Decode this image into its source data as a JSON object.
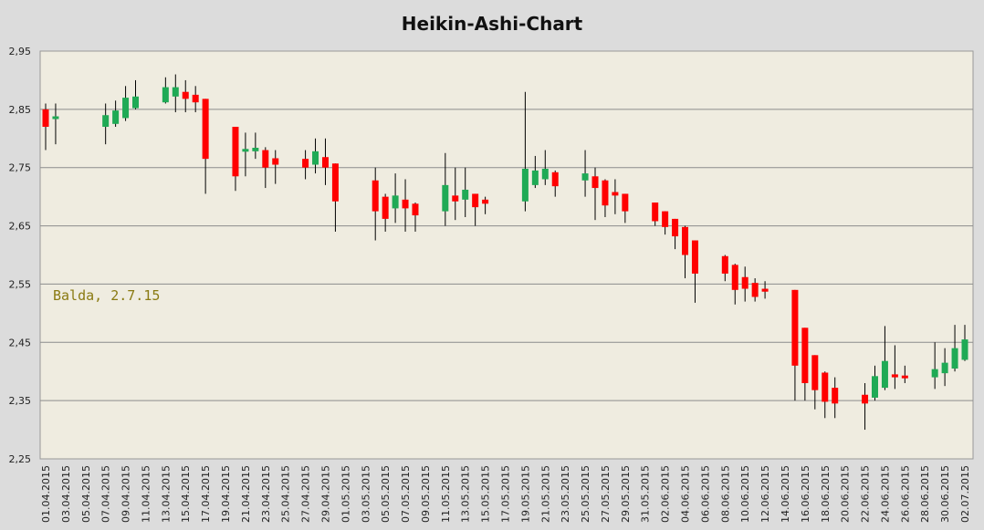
{
  "chart_data": {
    "type": "candlestick",
    "title": "Heikin-Ashi-Chart",
    "annotation": "Balda, 2.7.15",
    "ylim": [
      2.25,
      2.95
    ],
    "yticks": [
      "2,25",
      "2,35",
      "2,45",
      "2,55",
      "2,65",
      "2,75",
      "2,85",
      "2,95"
    ],
    "grid": "horizontal",
    "colors": {
      "up": "#1faa55",
      "down": "#ff0000",
      "wick": "#000000",
      "plot_bg": "#efece0",
      "outer_bg": "#dcdcdc",
      "gridline": "#8c8c8c"
    },
    "xticks": [
      "01.04.2015",
      "03.04.2015",
      "05.04.2015",
      "07.04.2015",
      "09.04.2015",
      "11.04.2015",
      "13.04.2015",
      "15.04.2015",
      "17.04.2015",
      "19.04.2015",
      "21.04.2015",
      "23.04.2015",
      "25.04.2015",
      "27.04.2015",
      "29.04.2015",
      "01.05.2015",
      "03.05.2015",
      "05.05.2015",
      "07.05.2015",
      "09.05.2015",
      "11.05.2015",
      "13.05.2015",
      "15.05.2015",
      "17.05.2015",
      "19.05.2015",
      "21.05.2015",
      "23.05.2015",
      "25.05.2015",
      "27.05.2015",
      "29.05.2015",
      "31.05.2015",
      "02.06.2015",
      "04.06.2015",
      "06.06.2015",
      "08.06.2015",
      "10.06.2015",
      "12.06.2015",
      "14.06.2015",
      "16.06.2015",
      "18.06.2015",
      "20.06.2015",
      "22.06.2015",
      "24.06.2015",
      "26.06.2015",
      "28.06.2015",
      "30.06.2015",
      "02.07.2015"
    ],
    "candles": [
      {
        "date": "01.04.2015",
        "open": 2.85,
        "close": 2.82,
        "high": 2.86,
        "low": 2.78
      },
      {
        "date": "02.04.2015",
        "open": 2.835,
        "close": 2.838,
        "high": 2.86,
        "low": 2.79
      },
      {
        "date": "07.04.2015",
        "open": 2.82,
        "close": 2.84,
        "high": 2.86,
        "low": 2.79
      },
      {
        "date": "08.04.2015",
        "open": 2.825,
        "close": 2.848,
        "high": 2.865,
        "low": 2.82
      },
      {
        "date": "09.04.2015",
        "open": 2.835,
        "close": 2.87,
        "high": 2.89,
        "low": 2.83
      },
      {
        "date": "10.04.2015",
        "open": 2.852,
        "close": 2.872,
        "high": 2.9,
        "low": 2.85
      },
      {
        "date": "13.04.2015",
        "open": 2.862,
        "close": 2.888,
        "high": 2.905,
        "low": 2.86
      },
      {
        "date": "14.04.2015",
        "open": 2.872,
        "close": 2.888,
        "high": 2.91,
        "low": 2.845
      },
      {
        "date": "15.04.2015",
        "open": 2.88,
        "close": 2.868,
        "high": 2.9,
        "low": 2.845
      },
      {
        "date": "16.04.2015",
        "open": 2.875,
        "close": 2.862,
        "high": 2.89,
        "low": 2.845
      },
      {
        "date": "17.04.2015",
        "open": 2.868,
        "close": 2.765,
        "high": 2.868,
        "low": 2.705
      },
      {
        "date": "20.04.2015",
        "open": 2.82,
        "close": 2.735,
        "high": 2.82,
        "low": 2.71
      },
      {
        "date": "21.04.2015",
        "open": 2.778,
        "close": 2.782,
        "high": 2.81,
        "low": 2.735
      },
      {
        "date": "22.04.2015",
        "open": 2.778,
        "close": 2.784,
        "high": 2.81,
        "low": 2.765
      },
      {
        "date": "23.04.2015",
        "open": 2.78,
        "close": 2.75,
        "high": 2.785,
        "low": 2.715
      },
      {
        "date": "24.04.2015",
        "open": 2.766,
        "close": 2.755,
        "high": 2.78,
        "low": 2.722
      },
      {
        "date": "27.04.2015",
        "open": 2.765,
        "close": 2.75,
        "high": 2.78,
        "low": 2.73
      },
      {
        "date": "28.04.2015",
        "open": 2.755,
        "close": 2.778,
        "high": 2.8,
        "low": 2.74
      },
      {
        "date": "29.04.2015",
        "open": 2.768,
        "close": 2.75,
        "high": 2.8,
        "low": 2.72
      },
      {
        "date": "30.04.2015",
        "open": 2.757,
        "close": 2.692,
        "high": 2.757,
        "low": 2.64
      },
      {
        "date": "04.05.2015",
        "open": 2.728,
        "close": 2.675,
        "high": 2.75,
        "low": 2.625
      },
      {
        "date": "05.05.2015",
        "open": 2.7,
        "close": 2.662,
        "high": 2.705,
        "low": 2.64
      },
      {
        "date": "06.05.2015",
        "open": 2.68,
        "close": 2.702,
        "high": 2.74,
        "low": 2.655
      },
      {
        "date": "07.05.2015",
        "open": 2.695,
        "close": 2.68,
        "high": 2.73,
        "low": 2.64
      },
      {
        "date": "08.05.2015",
        "open": 2.688,
        "close": 2.668,
        "high": 2.69,
        "low": 2.64
      },
      {
        "date": "11.05.2015",
        "open": 2.675,
        "close": 2.72,
        "high": 2.775,
        "low": 2.65
      },
      {
        "date": "12.05.2015",
        "open": 2.702,
        "close": 2.692,
        "high": 2.75,
        "low": 2.66
      },
      {
        "date": "13.05.2015",
        "open": 2.695,
        "close": 2.712,
        "high": 2.75,
        "low": 2.665
      },
      {
        "date": "14.05.2015",
        "open": 2.705,
        "close": 2.682,
        "high": 2.705,
        "low": 2.65
      },
      {
        "date": "15.05.2015",
        "open": 2.695,
        "close": 2.688,
        "high": 2.7,
        "low": 2.67
      },
      {
        "date": "19.05.2015",
        "open": 2.692,
        "close": 2.748,
        "high": 2.88,
        "low": 2.675
      },
      {
        "date": "20.05.2015",
        "open": 2.72,
        "close": 2.745,
        "high": 2.77,
        "low": 2.715
      },
      {
        "date": "21.05.2015",
        "open": 2.73,
        "close": 2.748,
        "high": 2.78,
        "low": 2.72
      },
      {
        "date": "22.05.2015",
        "open": 2.742,
        "close": 2.718,
        "high": 2.745,
        "low": 2.7
      },
      {
        "date": "25.05.2015",
        "open": 2.728,
        "close": 2.74,
        "high": 2.78,
        "low": 2.7
      },
      {
        "date": "26.05.2015",
        "open": 2.735,
        "close": 2.715,
        "high": 2.75,
        "low": 2.66
      },
      {
        "date": "27.05.2015",
        "open": 2.728,
        "close": 2.685,
        "high": 2.73,
        "low": 2.665
      },
      {
        "date": "28.05.2015",
        "open": 2.708,
        "close": 2.702,
        "high": 2.73,
        "low": 2.67
      },
      {
        "date": "29.05.2015",
        "open": 2.705,
        "close": 2.675,
        "high": 2.705,
        "low": 2.655
      },
      {
        "date": "01.06.2015",
        "open": 2.69,
        "close": 2.658,
        "high": 2.69,
        "low": 2.65
      },
      {
        "date": "02.06.2015",
        "open": 2.675,
        "close": 2.648,
        "high": 2.675,
        "low": 2.635
      },
      {
        "date": "03.06.2015",
        "open": 2.662,
        "close": 2.632,
        "high": 2.662,
        "low": 2.61
      },
      {
        "date": "04.06.2015",
        "open": 2.648,
        "close": 2.6,
        "high": 2.65,
        "low": 2.56
      },
      {
        "date": "05.06.2015",
        "open": 2.625,
        "close": 2.568,
        "high": 2.625,
        "low": 2.518
      },
      {
        "date": "08.06.2015",
        "open": 2.598,
        "close": 2.568,
        "high": 2.6,
        "low": 2.555
      },
      {
        "date": "09.06.2015",
        "open": 2.583,
        "close": 2.54,
        "high": 2.585,
        "low": 2.515
      },
      {
        "date": "10.06.2015",
        "open": 2.562,
        "close": 2.542,
        "high": 2.58,
        "low": 2.52
      },
      {
        "date": "11.06.2015",
        "open": 2.552,
        "close": 2.528,
        "high": 2.56,
        "low": 2.52
      },
      {
        "date": "12.06.2015",
        "open": 2.542,
        "close": 2.537,
        "high": 2.555,
        "low": 2.525
      },
      {
        "date": "15.06.2015",
        "open": 2.54,
        "close": 2.41,
        "high": 2.54,
        "low": 2.35
      },
      {
        "date": "16.06.2015",
        "open": 2.475,
        "close": 2.38,
        "high": 2.475,
        "low": 2.35
      },
      {
        "date": "17.06.2015",
        "open": 2.428,
        "close": 2.368,
        "high": 2.428,
        "low": 2.335
      },
      {
        "date": "18.06.2015",
        "open": 2.398,
        "close": 2.348,
        "high": 2.4,
        "low": 2.32
      },
      {
        "date": "19.06.2015",
        "open": 2.372,
        "close": 2.345,
        "high": 2.39,
        "low": 2.32
      },
      {
        "date": "22.06.2015",
        "open": 2.36,
        "close": 2.345,
        "high": 2.38,
        "low": 2.3
      },
      {
        "date": "23.06.2015",
        "open": 2.355,
        "close": 2.392,
        "high": 2.41,
        "low": 2.35
      },
      {
        "date": "24.06.2015",
        "open": 2.372,
        "close": 2.418,
        "high": 2.478,
        "low": 2.368
      },
      {
        "date": "25.06.2015",
        "open": 2.395,
        "close": 2.39,
        "high": 2.445,
        "low": 2.37
      },
      {
        "date": "26.06.2015",
        "open": 2.393,
        "close": 2.39,
        "high": 2.41,
        "low": 2.38
      },
      {
        "date": "29.06.2015",
        "open": 2.39,
        "close": 2.404,
        "high": 2.45,
        "low": 2.37
      },
      {
        "date": "30.06.2015",
        "open": 2.397,
        "close": 2.415,
        "high": 2.44,
        "low": 2.375
      },
      {
        "date": "01.07.2015",
        "open": 2.405,
        "close": 2.44,
        "high": 2.48,
        "low": 2.4
      },
      {
        "date": "02.07.2015",
        "open": 2.42,
        "close": 2.455,
        "high": 2.48,
        "low": 2.418
      }
    ]
  }
}
